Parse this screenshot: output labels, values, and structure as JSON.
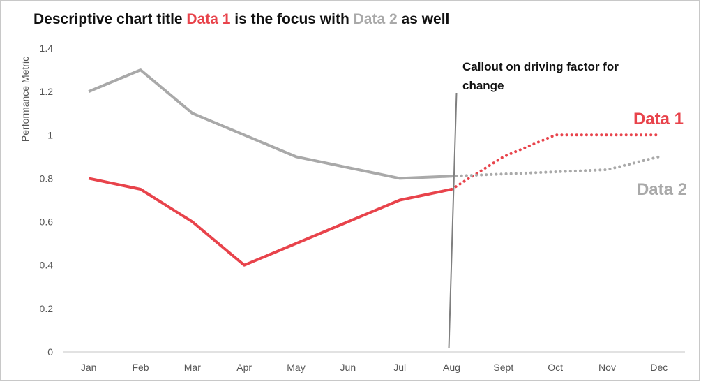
{
  "colors": {
    "data1": "#e8434b",
    "data2": "#a9a9a9",
    "text": "#111111",
    "axis": "#d9d9d9",
    "callout_line": "#7f7f7f"
  },
  "chart_data": {
    "type": "line",
    "title_parts": [
      {
        "text": "Descriptive chart title ",
        "style": "plain"
      },
      {
        "text": "Data 1",
        "style": "data1"
      },
      {
        "text": " is the focus with ",
        "style": "plain"
      },
      {
        "text": "Data 2",
        "style": "data2"
      },
      {
        "text": " as well",
        "style": "plain"
      }
    ],
    "ylabel": "Performance Metric",
    "xlabel": "",
    "categories": [
      "Jan",
      "Feb",
      "Mar",
      "Apr",
      "May",
      "Jun",
      "Jul",
      "Aug",
      "Sept",
      "Oct",
      "Nov",
      "Dec"
    ],
    "ylim": [
      0,
      1.4
    ],
    "yticks": [
      "0",
      "0.2",
      "0.4",
      "0.6",
      "0.8",
      "1",
      "1.2",
      "1.4"
    ],
    "grid": false,
    "series": [
      {
        "name": "Data 1",
        "color": "data1",
        "actual": [
          0.8,
          0.75,
          0.6,
          0.4,
          0.5,
          0.6,
          0.7,
          0.75,
          null,
          null,
          null,
          null
        ],
        "projected": [
          null,
          null,
          null,
          null,
          null,
          null,
          null,
          0.75,
          0.9,
          1.0,
          1.0,
          1.0
        ]
      },
      {
        "name": "Data 2",
        "color": "data2",
        "actual": [
          1.2,
          1.3,
          1.1,
          1.0,
          0.9,
          0.85,
          0.8,
          0.81,
          null,
          null,
          null,
          null
        ],
        "projected": [
          null,
          null,
          null,
          null,
          null,
          null,
          null,
          0.81,
          0.82,
          0.83,
          0.84,
          0.9
        ]
      }
    ],
    "callout": {
      "lines": [
        "Callout on driving factor for",
        "change"
      ],
      "at_category": "Aug"
    }
  }
}
